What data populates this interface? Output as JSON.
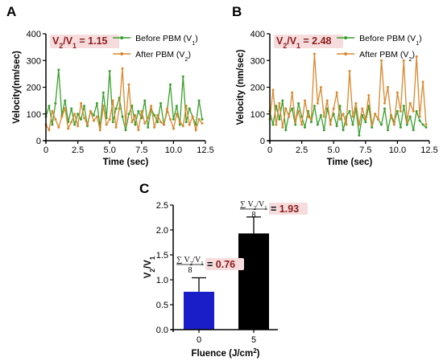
{
  "chart_data": [
    {
      "panel": "A",
      "type": "line",
      "xlabel": "Time (sec)",
      "ylabel": "Velocity(nm/sec)",
      "xlim": [
        0,
        12.5
      ],
      "ylim": [
        0,
        400
      ],
      "xticks": [
        "0",
        "2.5",
        "5.0",
        "7.5",
        "10.0",
        "12.5"
      ],
      "yticks": [
        "0",
        "100",
        "200",
        "300",
        "400"
      ],
      "annotation": {
        "prefix": "V",
        "sub1": "2",
        "mid": "/V",
        "sub2": "1",
        "value": "= 1.15"
      },
      "legend": [
        {
          "label": "Before PBM (V",
          "sub": "1",
          "end": ")"
        },
        {
          "label": "After PBM (V",
          "sub": "2",
          "end": ")"
        }
      ],
      "series": [
        {
          "color": "#3aa02c",
          "x": [
            0,
            0.25,
            0.5,
            0.75,
            1,
            1.25,
            1.5,
            1.75,
            2,
            2.25,
            2.5,
            2.75,
            3,
            3.25,
            3.5,
            3.75,
            4,
            4.25,
            4.5,
            4.75,
            5,
            5.25,
            5.5,
            5.75,
            6,
            6.25,
            6.5,
            6.75,
            7,
            7.25,
            7.5,
            7.75,
            8,
            8.25,
            8.5,
            8.75,
            9,
            9.25,
            9.5,
            9.75,
            10,
            10.25,
            10.5,
            10.75,
            11,
            11.25,
            11.5,
            11.75,
            12,
            12.25
          ],
          "values": [
            90,
            130,
            60,
            140,
            265,
            95,
            150,
            70,
            120,
            60,
            100,
            80,
            130,
            55,
            110,
            95,
            140,
            50,
            180,
            85,
            260,
            70,
            120,
            160,
            90,
            40,
            100,
            130,
            60,
            110,
            85,
            150,
            50,
            120,
            95,
            70,
            140,
            60,
            110,
            210,
            80,
            130,
            60,
            240,
            70,
            120,
            90,
            60,
            150,
            80
          ]
        },
        {
          "color": "#d9882e",
          "x": [
            0,
            0.25,
            0.5,
            0.75,
            1,
            1.25,
            1.5,
            1.75,
            2,
            2.25,
            2.5,
            2.75,
            3,
            3.25,
            3.5,
            3.75,
            4,
            4.25,
            4.5,
            4.75,
            5,
            5.25,
            5.5,
            5.75,
            6,
            6.25,
            6.5,
            6.75,
            7,
            7.25,
            7.5,
            7.75,
            8,
            8.25,
            8.5,
            8.75,
            9,
            9.25,
            9.5,
            9.75,
            10,
            10.25,
            10.5,
            10.75,
            11,
            11.25,
            11.5,
            11.75,
            12,
            12.25
          ],
          "values": [
            60,
            40,
            110,
            80,
            50,
            90,
            120,
            45,
            70,
            100,
            55,
            140,
            85,
            60,
            110,
            75,
            90,
            40,
            130,
            60,
            80,
            150,
            50,
            120,
            270,
            60,
            210,
            70,
            95,
            40,
            110,
            65,
            85,
            130,
            50,
            95,
            70,
            60,
            120,
            80,
            45,
            100,
            70,
            55,
            130,
            60,
            90,
            40,
            80,
            65
          ]
        }
      ]
    },
    {
      "panel": "B",
      "type": "line",
      "xlabel": "Time (sec)",
      "ylabel": "Velocity (nm/sec)",
      "xlim": [
        0,
        12.5
      ],
      "ylim": [
        0,
        400
      ],
      "xticks": [
        "0",
        "2.5",
        "5.0",
        "7.5",
        "10.0",
        "12.5"
      ],
      "yticks": [
        "0",
        "100",
        "200",
        "300",
        "400"
      ],
      "annotation": {
        "prefix": "V",
        "sub1": "2",
        "mid": "/V",
        "sub2": "1",
        "value": "= 2.48"
      },
      "legend": [
        {
          "label": "Before PBM (V",
          "sub": "1",
          "end": ")"
        },
        {
          "label": "After PBM (V",
          "sub": "2",
          "end": ")"
        }
      ],
      "series": [
        {
          "color": "#3aa02c",
          "x": [
            0,
            0.25,
            0.5,
            0.75,
            1,
            1.25,
            1.5,
            1.75,
            2,
            2.25,
            2.5,
            2.75,
            3,
            3.25,
            3.5,
            3.75,
            4,
            4.25,
            4.5,
            4.75,
            5,
            5.25,
            5.5,
            5.75,
            6,
            6.25,
            6.5,
            6.75,
            7,
            7.25,
            7.5,
            7.75,
            8,
            8.25,
            8.5,
            8.75,
            9,
            9.25,
            9.5,
            9.75,
            10,
            10.25,
            10.5,
            10.75,
            11,
            11.25,
            11.5,
            11.75,
            12,
            12.25
          ],
          "values": [
            110,
            60,
            130,
            80,
            150,
            40,
            100,
            120,
            60,
            140,
            90,
            50,
            110,
            70,
            130,
            60,
            95,
            40,
            120,
            75,
            100,
            55,
            130,
            40,
            90,
            110,
            60,
            120,
            20,
            95,
            70,
            130,
            50,
            100,
            80,
            60,
            120,
            40,
            95,
            70,
            110,
            50,
            130,
            60,
            90,
            40,
            110,
            75,
            60,
            50
          ]
        },
        {
          "color": "#d9882e",
          "x": [
            0,
            0.25,
            0.5,
            0.75,
            1,
            1.25,
            1.5,
            1.75,
            2,
            2.25,
            2.5,
            2.75,
            3,
            3.25,
            3.5,
            3.75,
            4,
            4.25,
            4.5,
            4.75,
            5,
            5.25,
            5.5,
            5.75,
            6,
            6.25,
            6.5,
            6.75,
            7,
            7.25,
            7.5,
            7.75,
            8,
            8.25,
            8.5,
            8.75,
            9,
            9.25,
            9.5,
            9.75,
            10,
            10.25,
            10.5,
            10.75,
            11,
            11.25,
            11.5,
            11.75,
            12,
            12.25
          ],
          "values": [
            80,
            190,
            60,
            140,
            50,
            120,
            90,
            180,
            70,
            110,
            60,
            150,
            90,
            80,
            325,
            140,
            200,
            90,
            150,
            60,
            120,
            180,
            80,
            100,
            60,
            260,
            90,
            140,
            60,
            120,
            80,
            170,
            60,
            100,
            80,
            300,
            140,
            200,
            90,
            60,
            180,
            110,
            300,
            70,
            140,
            110,
            315,
            90,
            220,
            60
          ]
        }
      ]
    },
    {
      "panel": "C",
      "type": "bar",
      "xlabel": "Fluence (J/cm",
      "xlabel_sup": "2",
      "xlabel_end": ")",
      "ylabel": "V",
      "ylabel_sub2": "2",
      "ylabel_mid": "/V",
      "ylabel_sub1": "1",
      "categories": [
        "0",
        "5"
      ],
      "values": [
        0.76,
        1.93
      ],
      "errors": [
        0.28,
        0.33
      ],
      "colors": [
        "#1a1ec8",
        "#000000"
      ],
      "ylim": [
        0,
        2.5
      ],
      "yticks": [
        "0.0",
        "0.5",
        "1.0",
        "1.5",
        "2.0",
        "2.5"
      ],
      "annotations": [
        {
          "numerator": "∑ V",
          "sub2": "2",
          "mid": "/V",
          "sub1": "1",
          "denominator": "8",
          "value": "= 0.76"
        },
        {
          "numerator": "∑ V",
          "sub2": "2",
          "mid": "/V",
          "sub1": "1",
          "denominator": "8",
          "value": "= 1.93"
        }
      ]
    }
  ],
  "colors": {
    "ratio_text": "#8b1a1a",
    "ratio_bg": "#f6dcdc"
  }
}
